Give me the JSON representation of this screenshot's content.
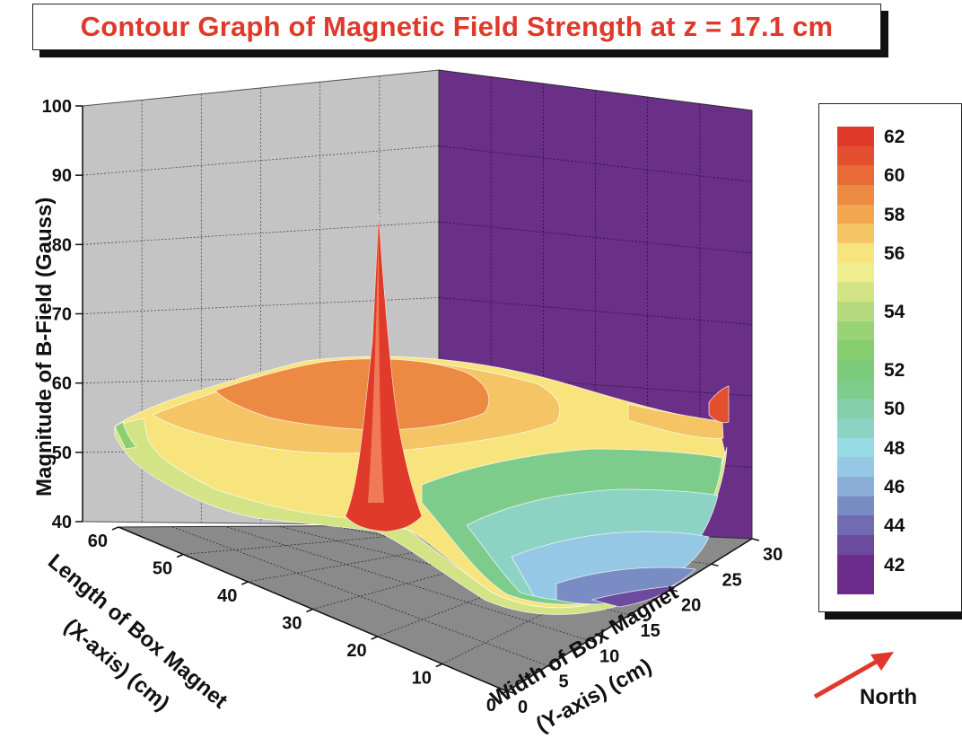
{
  "chart_data": {
    "type": "surface3d-contour",
    "title": "Contour Graph of Magnetic Field Strength at z = 17.1 cm",
    "zlabel": "Magnitude of B-Field (Gauss)",
    "xlabel_line1": "Length of Box Magnet",
    "xlabel_line2": "(X-axis) (cm)",
    "ylabel_line1": "Width of Box Magnet",
    "ylabel_line2": "(Y-axis) (cm)",
    "z_ticks": [
      "40",
      "50",
      "60",
      "70",
      "80",
      "90",
      "100"
    ],
    "x_ticks": [
      "0",
      "10",
      "20",
      "30",
      "40",
      "50",
      "60"
    ],
    "y_ticks": [
      "0",
      "5",
      "10",
      "15",
      "20",
      "25",
      "30"
    ],
    "zlim": [
      40,
      100
    ],
    "xlim": [
      0,
      60
    ],
    "ylim": [
      0,
      30
    ],
    "grid": true,
    "legend_placement": "right",
    "legend": [
      {
        "label": "62",
        "color": "#e03a2a"
      },
      {
        "label": "",
        "color": "#e4502f"
      },
      {
        "label": "60",
        "color": "#e86a36"
      },
      {
        "label": "",
        "color": "#ec8a44"
      },
      {
        "label": "58",
        "color": "#f2a74e"
      },
      {
        "label": "",
        "color": "#f5c464"
      },
      {
        "label": "56",
        "color": "#f7e47c"
      },
      {
        "label": "",
        "color": "#eeee8e"
      },
      {
        "label": "",
        "color": "#d2e486"
      },
      {
        "label": "54",
        "color": "#b6da7e"
      },
      {
        "label": "",
        "color": "#9ad376"
      },
      {
        "label": "",
        "color": "#86cd70"
      },
      {
        "label": "52",
        "color": "#7ccb7a"
      },
      {
        "label": "",
        "color": "#7ecc8c"
      },
      {
        "label": "50",
        "color": "#84ceaa"
      },
      {
        "label": "",
        "color": "#8cd3c4"
      },
      {
        "label": "48",
        "color": "#96dbe4"
      },
      {
        "label": "",
        "color": "#94c8e4"
      },
      {
        "label": "46",
        "color": "#8aaed6"
      },
      {
        "label": "",
        "color": "#7a8cc4"
      },
      {
        "label": "44",
        "color": "#6f6cb2"
      },
      {
        "label": "",
        "color": "#6c4a9e"
      },
      {
        "label": "42",
        "color": "#6c2c8c"
      },
      {
        "label": "",
        "color": "#6c2a8a"
      }
    ],
    "surface_summary": {
      "flat_region_max_level": 60,
      "spike_peak_gauss": 86,
      "spike_location_cm": {
        "x": 0,
        "y": 0
      },
      "corner_max_level": 62,
      "trough_min_level": 42
    }
  },
  "compass": {
    "label": "North",
    "arrow_color": "#e0382a"
  },
  "colors": {
    "back_wall": "#c4c4c4",
    "side_wall": "#6a2f86",
    "floor": "#8a8a8a",
    "title_color": "#e0382a"
  }
}
